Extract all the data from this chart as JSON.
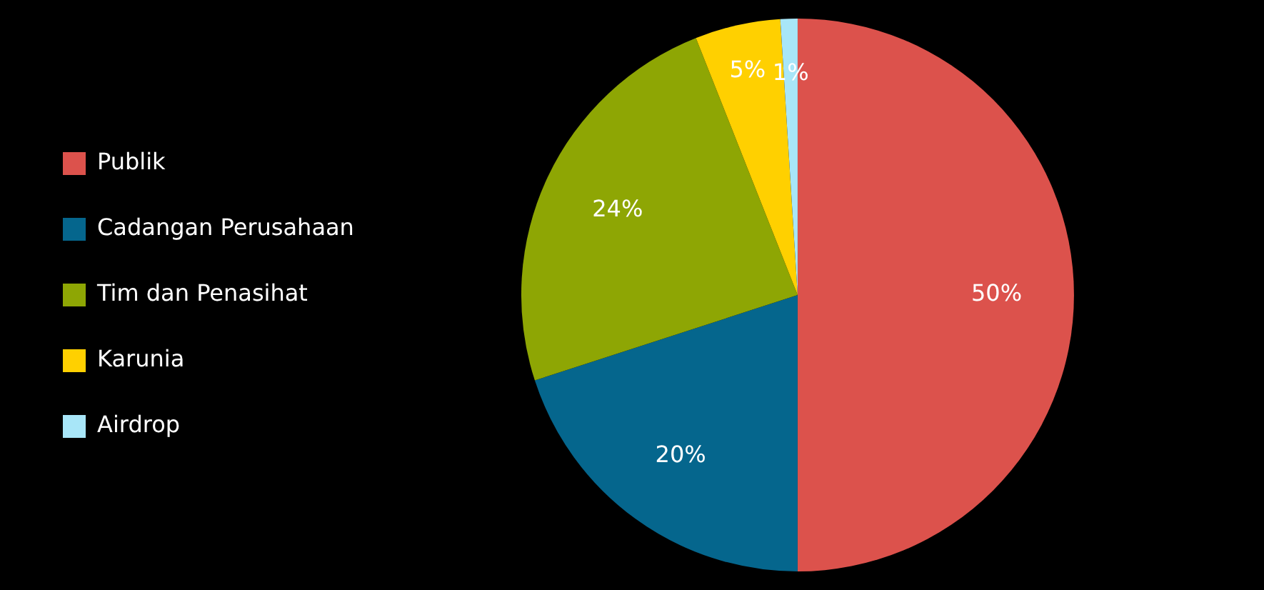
{
  "chart_data": {
    "type": "pie",
    "categories": [
      "Publik",
      "Cadangan Perusahaan",
      "Tim dan Penasihat",
      "Karunia",
      "Airdrop"
    ],
    "values": [
      50,
      20,
      24,
      5,
      1
    ],
    "colors": [
      "#dc524c",
      "#05668d",
      "#8ea604",
      "#ffd000",
      "#a8e6f8"
    ],
    "value_labels": [
      "50%",
      "20%",
      "24%",
      "5%",
      "1%"
    ],
    "legend": "left"
  }
}
